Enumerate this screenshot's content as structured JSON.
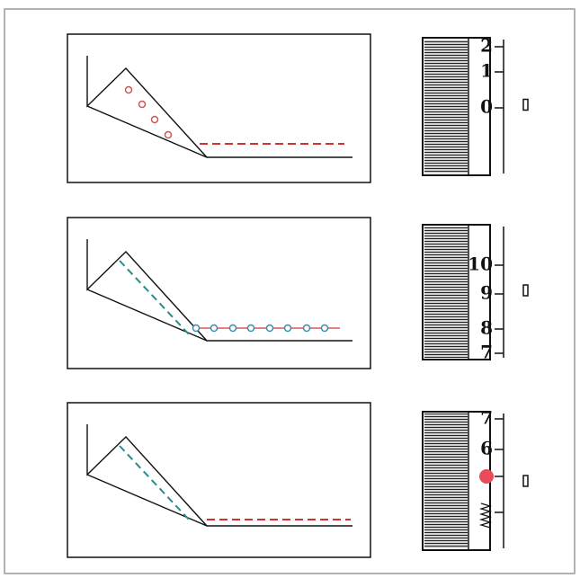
{
  "panels": [
    {
      "scale_labels": [
        "2",
        "1",
        "0"
      ]
    },
    {
      "scale_labels": [
        "10",
        "9",
        "8",
        "7"
      ]
    },
    {
      "scale_labels": [
        "7",
        "6"
      ]
    }
  ]
}
